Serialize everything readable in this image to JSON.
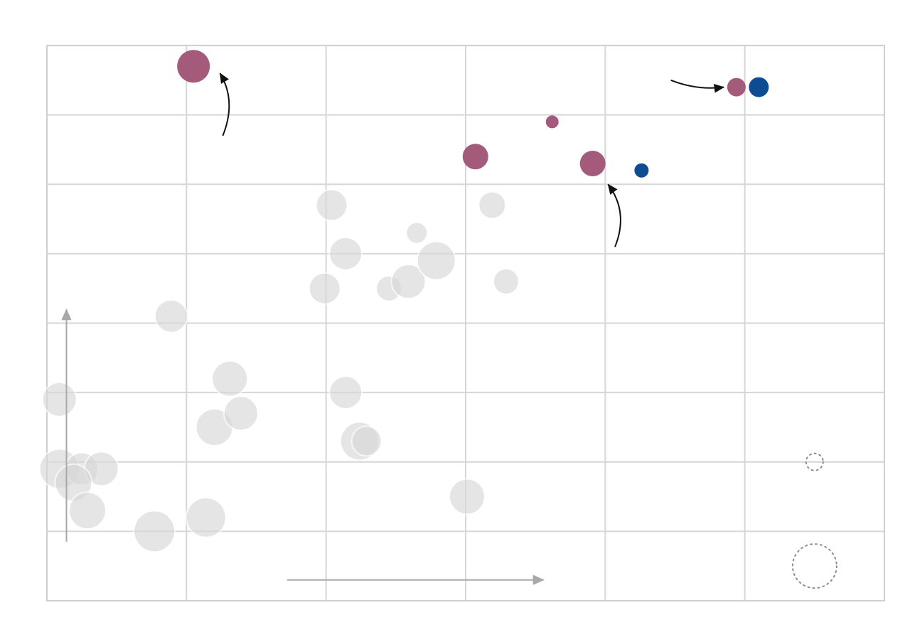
{
  "chart_data": {
    "type": "scatter",
    "title": "",
    "xlabel": "",
    "ylabel": "",
    "xlim": [
      0,
      6
    ],
    "ylim": [
      0,
      8
    ],
    "grid": true,
    "legend": "none",
    "colors": {
      "background_bubble": "#d9d9d9",
      "highlight_pink": "#a45a7a",
      "highlight_blue": "#0d4b93",
      "grid": "#d6d6d6",
      "frame": "#cfcfcf",
      "axis_arrow": "#a8a8a8",
      "annotation_arrow": "#111111",
      "size_legend_stroke": "#8a8a8a"
    },
    "series": [
      {
        "values": [
          {
            "x": 0.09,
            "y": 2.9,
            "size": 24
          },
          {
            "x": 0.09,
            "y": 1.9,
            "size": 28
          },
          {
            "x": 0.25,
            "y": 1.9,
            "size": 23
          },
          {
            "x": 0.39,
            "y": 1.9,
            "size": 24
          },
          {
            "x": 0.19,
            "y": 1.7,
            "size": 26
          },
          {
            "x": 0.29,
            "y": 1.3,
            "size": 26
          },
          {
            "x": 0.77,
            "y": 1.0,
            "size": 29
          },
          {
            "x": 0.89,
            "y": 4.1,
            "size": 23
          },
          {
            "x": 1.14,
            "y": 1.2,
            "size": 28
          },
          {
            "x": 1.2,
            "y": 2.5,
            "size": 26
          },
          {
            "x": 1.31,
            "y": 3.2,
            "size": 25
          },
          {
            "x": 1.39,
            "y": 2.7,
            "size": 24
          },
          {
            "x": 2.04,
            "y": 5.7,
            "size": 22
          },
          {
            "x": 1.99,
            "y": 4.5,
            "size": 22
          },
          {
            "x": 2.14,
            "y": 5.0,
            "size": 23
          },
          {
            "x": 2.14,
            "y": 3.0,
            "size": 23
          },
          {
            "x": 2.24,
            "y": 2.3,
            "size": 27
          },
          {
            "x": 2.29,
            "y": 2.3,
            "size": 21
          },
          {
            "x": 2.45,
            "y": 4.5,
            "size": 18
          },
          {
            "x": 2.59,
            "y": 4.6,
            "size": 24
          },
          {
            "x": 2.65,
            "y": 5.3,
            "size": 15
          },
          {
            "x": 2.79,
            "y": 4.9,
            "size": 27
          },
          {
            "x": 3.01,
            "y": 1.5,
            "size": 25
          },
          {
            "x": 3.19,
            "y": 5.7,
            "size": 19
          },
          {
            "x": 3.29,
            "y": 4.6,
            "size": 18
          }
        ]
      },
      {
        "values": [
          {
            "x": 1.05,
            "y": 7.7,
            "size": 23
          },
          {
            "x": 3.07,
            "y": 6.4,
            "size": 18
          },
          {
            "x": 3.62,
            "y": 6.9,
            "size": 9
          },
          {
            "x": 3.91,
            "y": 6.3,
            "size": 18
          },
          {
            "x": 4.94,
            "y": 7.4,
            "size": 13
          }
        ]
      },
      {
        "values": [
          {
            "x": 4.26,
            "y": 6.2,
            "size": 10
          },
          {
            "x": 5.1,
            "y": 7.4,
            "size": 14
          }
        ]
      }
    ],
    "annotations": [
      {
        "type": "curved-arrow",
        "points": [
          [
            1.26,
            6.7
          ],
          [
            1.36,
            7.2
          ],
          [
            1.24,
            7.6
          ]
        ]
      },
      {
        "type": "curved-arrow",
        "points": [
          [
            4.07,
            5.1
          ],
          [
            4.17,
            5.6
          ],
          [
            4.02,
            6.0
          ]
        ]
      },
      {
        "type": "curved-arrow",
        "points": [
          [
            4.47,
            7.5
          ],
          [
            4.66,
            7.35
          ],
          [
            4.85,
            7.4
          ]
        ]
      },
      {
        "type": "axis-arrow",
        "points": [
          [
            0.14,
            0.85
          ],
          [
            0.14,
            4.2
          ]
        ]
      },
      {
        "type": "axis-arrow",
        "points": [
          [
            1.72,
            0.3
          ],
          [
            3.56,
            0.3
          ]
        ]
      }
    ],
    "size_legend": [
      {
        "x": 5.5,
        "y": 2.0,
        "size": 12
      },
      {
        "x": 5.5,
        "y": 0.5,
        "size": 31
      }
    ]
  }
}
